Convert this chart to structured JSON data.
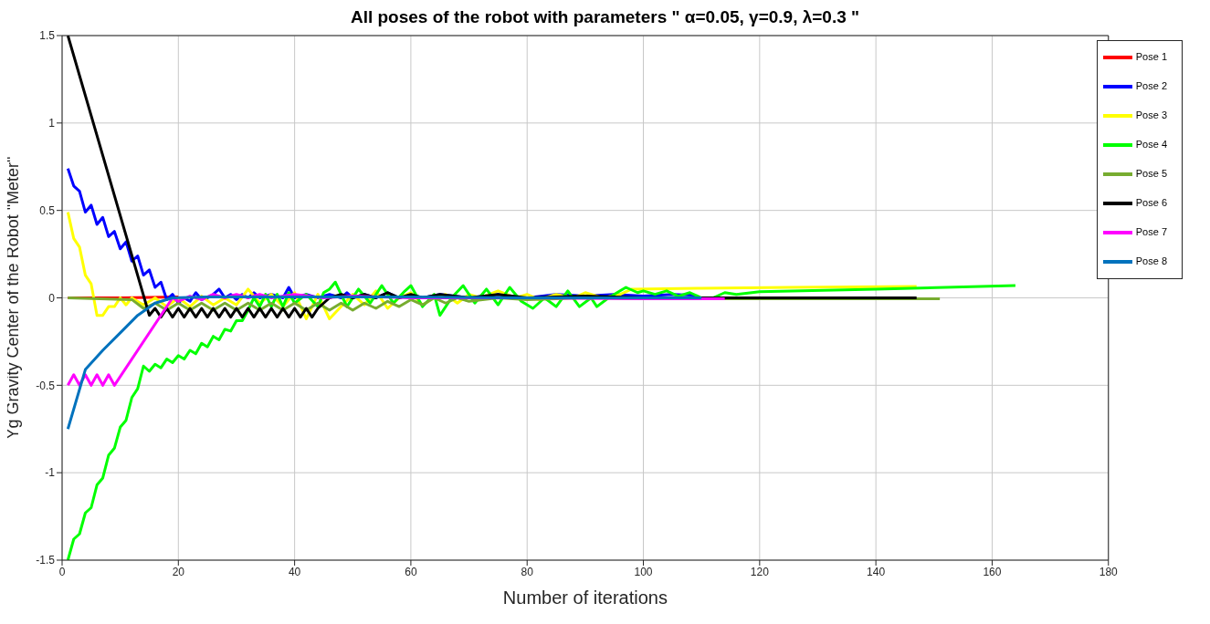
{
  "chart_data": {
    "type": "line",
    "title": "All poses of the robot with parameters \" α=0.05, γ=0.9, λ=0.3 \"",
    "xlabel": "Number of iterations",
    "ylabel": "Yg Gravity Center of the Robot \"Meter\"",
    "xlim": [
      0,
      180
    ],
    "ylim": [
      -1.5,
      1.5
    ],
    "xticks": [
      0,
      20,
      40,
      60,
      80,
      100,
      120,
      140,
      160,
      180
    ],
    "yticks": [
      -1.5,
      -1,
      -0.5,
      0,
      0.5,
      1,
      1.5
    ],
    "grid": true,
    "legend": "top right",
    "line_style": "solid",
    "marker": "none",
    "series": [
      {
        "name": "Pose 1",
        "color": "#ff0000",
        "x": [
          1,
          10,
          20
        ],
        "values": [
          0,
          0,
          0.005
        ]
      },
      {
        "name": "Pose 2",
        "color": "#0000ff",
        "x": [
          1,
          2,
          3,
          4,
          5,
          6,
          7,
          8,
          9,
          10,
          11,
          12,
          13,
          14,
          15,
          16,
          17,
          18,
          19,
          20,
          21,
          22,
          23,
          24,
          25,
          26,
          27,
          28,
          29,
          30,
          31,
          32,
          33,
          34,
          36,
          38,
          39,
          40,
          42,
          44,
          46,
          48,
          49,
          50,
          52,
          54,
          56,
          58,
          60,
          62,
          65,
          70,
          75,
          80,
          85,
          90,
          95,
          100,
          105,
          109
        ],
        "values": [
          0.74,
          0.64,
          0.61,
          0.49,
          0.53,
          0.42,
          0.46,
          0.35,
          0.38,
          0.28,
          0.32,
          0.21,
          0.24,
          0.13,
          0.16,
          0.06,
          0.09,
          -0.01,
          0.02,
          -0.03,
          0,
          -0.02,
          0.03,
          -0.01,
          0,
          0.02,
          0.05,
          0,
          0.02,
          -0.01,
          0.02,
          0,
          0.03,
          0,
          0.02,
          0,
          0.06,
          0,
          0.02,
          0,
          0.02,
          0,
          0.03,
          0,
          0.02,
          0,
          0.03,
          0,
          0.02,
          0,
          0.02,
          0,
          0.02,
          0,
          0.02,
          0.01,
          0.02,
          0.01,
          0.02,
          0.015
        ]
      },
      {
        "name": "Pose 3",
        "color": "#ffff00",
        "x": [
          1,
          2,
          3,
          4,
          5,
          6,
          7,
          8,
          9,
          10,
          11,
          12,
          14,
          16,
          18,
          20,
          22,
          24,
          26,
          28,
          30,
          32,
          34,
          36,
          38,
          40,
          42,
          44,
          46,
          48,
          50,
          52,
          54,
          56,
          58,
          60,
          62,
          64,
          66,
          68,
          70,
          72,
          75,
          78,
          80,
          82,
          85,
          88,
          90,
          93,
          96,
          98,
          110,
          125,
          147
        ],
        "values": [
          0.49,
          0.34,
          0.29,
          0.13,
          0.08,
          -0.1,
          -0.1,
          -0.05,
          -0.05,
          0,
          -0.04,
          0,
          -0.04,
          0,
          -0.05,
          0,
          -0.05,
          0.01,
          -0.04,
          0,
          -0.04,
          0.05,
          -0.03,
          0.02,
          -0.05,
          0.03,
          -0.12,
          0.02,
          -0.12,
          -0.05,
          0.02,
          -0.04,
          0.04,
          -0.06,
          0,
          0.03,
          -0.04,
          0,
          0.02,
          -0.03,
          0.02,
          0,
          0.04,
          0,
          0.02,
          -0.01,
          0.02,
          0,
          0.03,
          0,
          0.02,
          0.05,
          0.055,
          0.06,
          0.065
        ]
      },
      {
        "name": "Pose 4",
        "color": "#00ff00",
        "x": [
          1,
          2,
          3,
          4,
          5,
          6,
          7,
          8,
          9,
          10,
          11,
          12,
          13,
          14,
          15,
          16,
          17,
          18,
          19,
          20,
          21,
          22,
          23,
          24,
          25,
          26,
          27,
          28,
          29,
          30,
          31,
          32,
          33,
          34,
          35,
          36,
          37,
          38,
          39,
          40,
          42,
          44,
          45,
          46,
          47,
          49,
          51,
          53,
          55,
          57,
          59,
          60,
          62,
          64,
          65,
          67,
          69,
          71,
          73,
          75,
          77,
          79,
          81,
          83,
          85,
          87,
          89,
          91,
          92,
          94,
          96,
          97,
          99,
          100,
          102,
          104,
          106,
          108,
          110,
          112,
          114,
          116,
          120,
          140,
          164
        ],
        "values": [
          -1.5,
          -1.38,
          -1.35,
          -1.23,
          -1.2,
          -1.07,
          -1.03,
          -0.9,
          -0.86,
          -0.74,
          -0.7,
          -0.57,
          -0.52,
          -0.39,
          -0.42,
          -0.38,
          -0.4,
          -0.35,
          -0.37,
          -0.33,
          -0.35,
          -0.3,
          -0.32,
          -0.26,
          -0.28,
          -0.22,
          -0.24,
          -0.18,
          -0.19,
          -0.13,
          -0.13,
          -0.07,
          0,
          -0.05,
          0.02,
          -0.05,
          0.02,
          -0.05,
          0.03,
          -0.03,
          0.02,
          -0.05,
          0.03,
          0.05,
          0.09,
          -0.05,
          0.05,
          -0.03,
          0.07,
          -0.03,
          0.04,
          0.07,
          -0.05,
          0.02,
          -0.1,
          0,
          0.07,
          -0.03,
          0.05,
          -0.04,
          0.06,
          -0.02,
          -0.06,
          0,
          -0.05,
          0.04,
          -0.05,
          0,
          -0.05,
          0,
          0.04,
          0.06,
          0.03,
          0.04,
          0.02,
          0.04,
          0.01,
          0.03,
          0,
          0,
          0.03,
          0.02,
          0.035,
          0.05,
          0.07
        ]
      },
      {
        "name": "Pose 5",
        "color": "#77ac30",
        "x": [
          1,
          12,
          14,
          16,
          18,
          20,
          22,
          24,
          26,
          28,
          30,
          32,
          34,
          36,
          38,
          40,
          42,
          44,
          46,
          48,
          50,
          52,
          54,
          56,
          58,
          60,
          62,
          64,
          66,
          68,
          70,
          75,
          80,
          90,
          100,
          151
        ],
        "values": [
          0,
          -0.01,
          -0.06,
          -0.03,
          -0.07,
          -0.03,
          -0.07,
          -0.03,
          -0.07,
          -0.03,
          -0.07,
          -0.03,
          -0.07,
          -0.03,
          -0.07,
          -0.03,
          -0.07,
          -0.03,
          -0.07,
          -0.03,
          -0.07,
          -0.03,
          -0.06,
          -0.02,
          -0.05,
          -0.01,
          -0.04,
          0,
          -0.03,
          0,
          -0.02,
          0,
          -0.01,
          0,
          -0.005,
          -0.005
        ]
      },
      {
        "name": "Pose 6",
        "color": "#000000",
        "x": [
          1,
          15,
          16,
          17,
          18,
          19,
          20,
          21,
          22,
          23,
          24,
          25,
          26,
          27,
          28,
          29,
          30,
          31,
          32,
          33,
          34,
          35,
          36,
          37,
          38,
          39,
          40,
          41,
          42,
          43,
          44,
          46,
          48,
          50,
          52,
          54,
          56,
          58,
          60,
          62,
          65,
          70,
          75,
          80,
          90,
          100,
          147
        ],
        "values": [
          1.5,
          -0.1,
          -0.06,
          -0.11,
          -0.06,
          -0.11,
          -0.06,
          -0.11,
          -0.06,
          -0.11,
          -0.06,
          -0.11,
          -0.06,
          -0.11,
          -0.06,
          -0.11,
          -0.06,
          -0.11,
          -0.06,
          -0.11,
          -0.06,
          -0.11,
          -0.06,
          -0.11,
          -0.06,
          -0.11,
          -0.06,
          -0.11,
          -0.06,
          -0.11,
          -0.06,
          0,
          0.02,
          0,
          0.02,
          0,
          0.03,
          0,
          0.02,
          0,
          0.02,
          0,
          0.02,
          0,
          0.01,
          0,
          0
        ]
      },
      {
        "name": "Pose 7",
        "color": "#ff00ff",
        "x": [
          1,
          2,
          3,
          4,
          5,
          6,
          7,
          8,
          9,
          19,
          20,
          22,
          24,
          26,
          28,
          30,
          32,
          34,
          36,
          40,
          45,
          50,
          60,
          80,
          100,
          114
        ],
        "values": [
          -0.5,
          -0.44,
          -0.5,
          -0.44,
          -0.5,
          -0.44,
          -0.5,
          -0.44,
          -0.5,
          0,
          -0.02,
          0.01,
          -0.01,
          0.02,
          0,
          0.02,
          0,
          0.02,
          0,
          0.02,
          0,
          0.01,
          0,
          0,
          -0.005,
          -0.005
        ]
      },
      {
        "name": "Pose 8",
        "color": "#0072bd",
        "x": [
          1,
          4,
          7,
          10,
          13,
          16,
          19,
          25,
          40,
          60,
          80,
          110
        ],
        "values": [
          -0.75,
          -0.41,
          -0.3,
          -0.2,
          -0.1,
          -0.03,
          0,
          0.005,
          0.005,
          0.005,
          0,
          0
        ]
      }
    ]
  }
}
